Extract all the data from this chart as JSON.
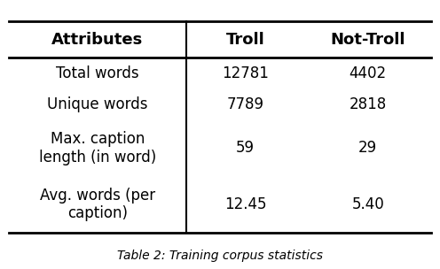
{
  "headers": [
    "Attributes",
    "Troll",
    "Not-Troll"
  ],
  "rows": [
    [
      "Total words",
      "12781",
      "4402"
    ],
    [
      "Unique words",
      "7789",
      "2818"
    ],
    [
      "Max. caption\nlength (in word)",
      "59",
      "29"
    ],
    [
      "Avg. words (per\ncaption)",
      "12.45",
      "5.40"
    ]
  ],
  "caption": "Table 2: Training corpus statistics",
  "bg_color": "#ffffff",
  "header_fontsize": 13,
  "cell_fontsize": 12,
  "caption_fontsize": 10
}
